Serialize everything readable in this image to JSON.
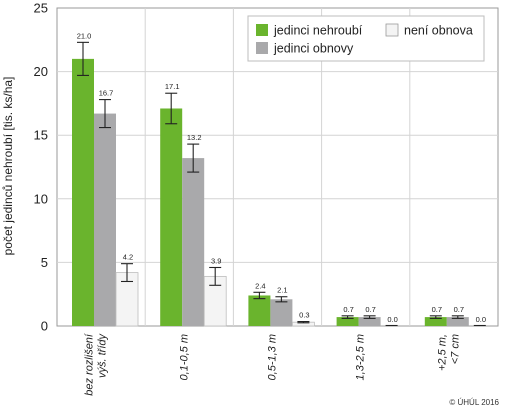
{
  "chart_data": {
    "type": "bar",
    "ylabel": "počet jedinců nehroubí [tis. ks/ha]",
    "ylim": [
      0,
      25
    ],
    "yticks": [
      "0",
      "5",
      "10",
      "15",
      "20",
      "25"
    ],
    "grid": true,
    "legend_position": "top-right",
    "categories": [
      [
        "bez rozlišení",
        "výš. třídy"
      ],
      [
        "0,1-0,5 m"
      ],
      [
        "0,5-1,3 m"
      ],
      [
        "1,3-2,5 m"
      ],
      [
        "+2,5 m,",
        "<7 cm"
      ]
    ],
    "series": [
      {
        "name": "jedinci nehroubí",
        "color": "#6ab42d",
        "values": [
          21.0,
          17.1,
          2.4,
          0.7,
          0.7
        ],
        "labels": [
          "21.0",
          "17.1",
          "2.4",
          "0.7",
          "0.7"
        ],
        "error": [
          1.3,
          1.2,
          0.25,
          0.1,
          0.1
        ]
      },
      {
        "name": "jedinci obnovy",
        "color": "#a9a9ab",
        "values": [
          16.7,
          13.2,
          2.1,
          0.7,
          0.7
        ],
        "labels": [
          "16.7",
          "13.2",
          "2.1",
          "0.7",
          "0.7"
        ],
        "error": [
          1.1,
          1.1,
          0.2,
          0.1,
          0.1
        ]
      },
      {
        "name": "není obnova",
        "color": "#f4f4f4",
        "values": [
          4.2,
          3.9,
          0.3,
          0.0,
          0.0
        ],
        "labels": [
          "4.2",
          "3.9",
          "0.3",
          "0.0",
          "0.0"
        ],
        "error": [
          0.7,
          0.7,
          0.05,
          0.0,
          0.0
        ]
      }
    ]
  },
  "credit": "© ÚHÚL 2016"
}
